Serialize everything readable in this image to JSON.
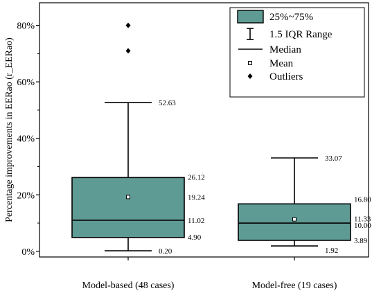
{
  "chart_data": {
    "type": "box",
    "title": "",
    "xlabel": "",
    "ylabel": "Percentage improvements in EERao (r_EERao)",
    "ylim": [
      -2,
      88
    ],
    "yticks": [
      0,
      20,
      40,
      60,
      80
    ],
    "ytick_labels": [
      "0%",
      "20%",
      "40%",
      "60%",
      "80%"
    ],
    "box_color": "#5f9b95",
    "legend_position": "top-right",
    "legend": [
      {
        "symbol": "box",
        "label": "25%~75%"
      },
      {
        "symbol": "whisker",
        "label": "1.5 IQR Range"
      },
      {
        "symbol": "line",
        "label": "Median"
      },
      {
        "symbol": "square",
        "label": "Mean"
      },
      {
        "symbol": "diamond",
        "label": "Outliers"
      }
    ],
    "boxes": [
      {
        "category": "Model-based (48 cases)",
        "whisker_low": 0.2,
        "q1": 4.9,
        "median": 11.02,
        "mean": 19.24,
        "q3": 26.12,
        "whisker_high": 52.63,
        "outliers": [
          71,
          80
        ],
        "labels": {
          "whisker_high": "52.63",
          "q3": "26.12",
          "mean": "19.24",
          "median": "11.02",
          "q1": "4.90",
          "whisker_low": "0.20"
        }
      },
      {
        "category": "Model-free (19 cases)",
        "whisker_low": 1.92,
        "q1": 3.89,
        "median": 10.0,
        "mean": 11.33,
        "q3": 16.8,
        "whisker_high": 33.07,
        "outliers": [],
        "labels": {
          "whisker_high": "33.07",
          "q3": "16.80",
          "mean": "11.33",
          "median": "10.00",
          "q1": "3.89",
          "whisker_low": "1.92"
        }
      }
    ]
  }
}
